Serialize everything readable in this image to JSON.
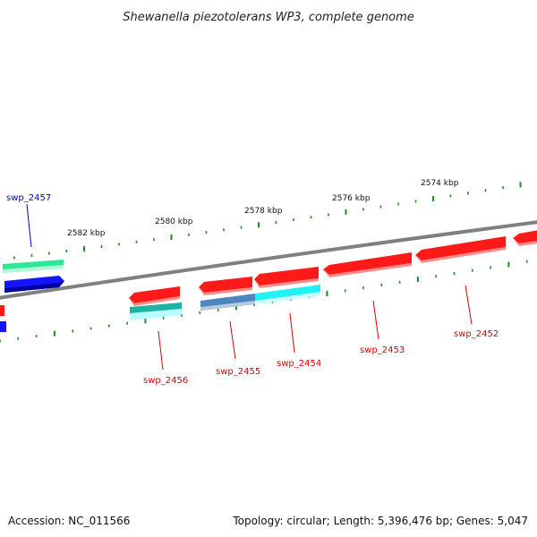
{
  "title": "Shewanella piezotolerans WP3, complete genome",
  "footer": {
    "accession": "Accession: NC_011566",
    "summary": "Topology: circular; Length: 5,396,476 bp; Genes: 5,047"
  },
  "kbp_labels": [
    "2582 kbp",
    "2580 kbp",
    "2578 kbp",
    "2576 kbp",
    "2574 kbp"
  ],
  "gene_labels": {
    "swp_2457": "swp_2457",
    "swp_2456": "swp_2456",
    "swp_2455": "swp_2455",
    "swp_2454": "swp_2454",
    "swp_2453": "swp_2453",
    "swp_2452": "swp_2452"
  },
  "colors": {
    "backbone": "#808080",
    "tick": "#1e8c1e",
    "label_red": "#dd0000",
    "label_blue": "#0000cc",
    "leader_red": "#dd0000",
    "leader_blue": "#0000cc",
    "red": "#ff1a1a",
    "red_dark": "#b80000",
    "red_light": "#ff8a8a",
    "blue": "#1414ff",
    "blue_dark": "#0000a0",
    "green": "#2ee89a",
    "green_light": "#b4f7d8",
    "teal": "#1fb3a3",
    "teal_light": "#b8ffff",
    "steel": "#4f86c0",
    "steel_light": "#b7c9dc",
    "cyan": "#1ff2f2",
    "cyan_light": "#c8ffff"
  }
}
